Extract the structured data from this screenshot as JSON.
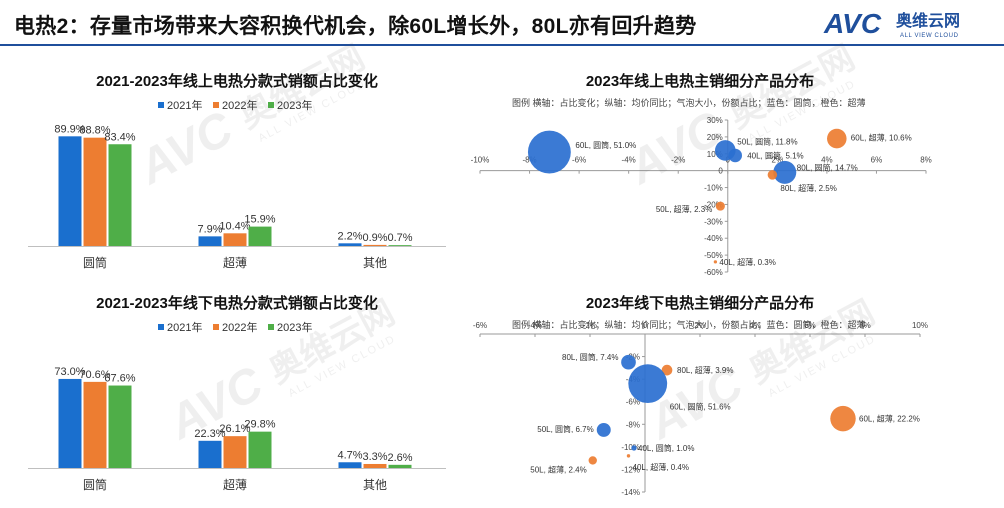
{
  "header": {
    "title": "电热2：存量市场带来大容积换代机会，除60L增长外，80L亦有回升趋势",
    "logo_mark": "AVC",
    "logo_cn": "奥维云网",
    "logo_en": "ALL VIEW CLOUD"
  },
  "watermark": {
    "mark": "AVC",
    "cn": "奥维云网",
    "en": "ALL VIEW CLOUD"
  },
  "colors": {
    "y2021": "#1a6fce",
    "y2022": "#ed7d31",
    "y2023": "#4fae48",
    "blue": "#2a6fd0",
    "orange": "#ed7d31",
    "rule": "#1f4f9c"
  },
  "chart_data": [
    {
      "id": "online_bar",
      "type": "bar",
      "title": "2021-2023年线上电热分款式销额占比变化",
      "categories": [
        "圆筒",
        "超薄",
        "其他"
      ],
      "series": [
        {
          "name": "2021年",
          "values": [
            89.9,
            7.9,
            2.2
          ],
          "labels": [
            "89.9%",
            "7.9%",
            "2.2%"
          ]
        },
        {
          "name": "2022年",
          "values": [
            88.8,
            10.4,
            0.9
          ],
          "labels": [
            "88.8%",
            "10.4%",
            "0.9%"
          ]
        },
        {
          "name": "2023年",
          "values": [
            83.4,
            15.9,
            0.7
          ],
          "labels": [
            "83.4%",
            "15.9%",
            "0.7%"
          ]
        }
      ],
      "ylim": [
        0,
        100
      ]
    },
    {
      "id": "offline_bar",
      "type": "bar",
      "title": "2021-2023年线下电热分款式销额占比变化",
      "categories": [
        "圆筒",
        "超薄",
        "其他"
      ],
      "series": [
        {
          "name": "2021年",
          "values": [
            73.0,
            22.3,
            4.7
          ],
          "labels": [
            "73.0%",
            "22.3%",
            "4.7%"
          ]
        },
        {
          "name": "2022年",
          "values": [
            70.6,
            26.1,
            3.3
          ],
          "labels": [
            "70.6%",
            "26.1%",
            "3.3%"
          ]
        },
        {
          "name": "2023年",
          "values": [
            67.6,
            29.8,
            2.6
          ],
          "labels": [
            "67.6%",
            "29.8%",
            "2.6%"
          ]
        }
      ],
      "ylim": [
        0,
        100
      ]
    },
    {
      "id": "online_bubble",
      "type": "scatter",
      "title": "2023年线上电热主销细分产品分布",
      "legend_note": "图例  横轴：占比变化；纵轴：均价同比；气泡大小，份额占比；蓝色：圆筒，橙色：超薄",
      "xlim": [
        -10,
        8
      ],
      "ylim": [
        -60,
        30
      ],
      "x_ticks": [
        "-10%",
        "-8%",
        "-6%",
        "-4%",
        "-2%",
        "0",
        "2%",
        "4%",
        "6%",
        "8%"
      ],
      "x_tick_values": [
        -10,
        -8,
        -6,
        -4,
        -2,
        0,
        2,
        4,
        6,
        8
      ],
      "y_ticks": [
        "30%",
        "20%",
        "10%",
        "0",
        "-10%",
        "-20%",
        "-30%",
        "-40%",
        "-50%",
        "-60%"
      ],
      "y_tick_values": [
        30,
        20,
        10,
        0,
        -10,
        -20,
        -30,
        -40,
        -50,
        -60
      ],
      "points": [
        {
          "label": "60L, 圆筒, 51.0%",
          "type": "圆筒",
          "share": 51.0,
          "x": -7.2,
          "y": 11.0
        },
        {
          "label": "50L, 圆筒, 11.8%",
          "type": "圆筒",
          "share": 11.8,
          "x": -0.1,
          "y": 12.0
        },
        {
          "label": "60L, 超薄, 10.6%",
          "type": "超薄",
          "share": 10.6,
          "x": 4.4,
          "y": 19.0
        },
        {
          "label": "40L, 圆筒, 5.1%",
          "type": "圆筒",
          "share": 5.1,
          "x": 0.3,
          "y": 9.0
        },
        {
          "label": "80L, 圆筒, 14.7%",
          "type": "圆筒",
          "share": 14.7,
          "x": 2.3,
          "y": -1.0
        },
        {
          "label": "80L, 超薄, 2.5%",
          "type": "超薄",
          "share": 2.5,
          "x": 1.8,
          "y": -2.5
        },
        {
          "label": "50L, 超薄, 2.3%",
          "type": "超薄",
          "share": 2.3,
          "x": -0.3,
          "y": -21.0
        },
        {
          "label": "40L, 超薄, 0.3%",
          "type": "超薄",
          "share": 0.3,
          "x": -0.5,
          "y": -54.0
        }
      ]
    },
    {
      "id": "offline_bubble",
      "type": "scatter",
      "title": "2023年线下电热主销细分产品分布",
      "legend_note": "图例  横轴：占比变化；纵轴：均价同比；气泡大小，份额占比；蓝色：圆筒，橙色：超薄",
      "xlim": [
        -6,
        10
      ],
      "ylim": [
        -14,
        0
      ],
      "x_ticks": [
        "-6%",
        "-4%",
        "-2%",
        "0",
        "2%",
        "4%",
        "6%",
        "8%",
        "10%"
      ],
      "x_tick_values": [
        -6,
        -4,
        -2,
        0,
        2,
        4,
        6,
        8,
        10
      ],
      "y_ticks": [
        "-2%",
        "-4%",
        "-6%",
        "-8%",
        "-10%",
        "-12%",
        "-14%"
      ],
      "y_tick_values": [
        -2,
        -4,
        -6,
        -8,
        -10,
        -12,
        -14
      ],
      "points": [
        {
          "label": "80L, 圆筒, 7.4%",
          "type": "圆筒",
          "share": 7.4,
          "x": -0.6,
          "y": -2.5
        },
        {
          "label": "80L, 超薄, 3.9%",
          "type": "超薄",
          "share": 3.9,
          "x": 0.8,
          "y": -3.2
        },
        {
          "label": "60L, 圆筒, 51.6%",
          "type": "圆筒",
          "share": 51.6,
          "x": 0.1,
          "y": -4.4
        },
        {
          "label": "50L, 圆筒, 6.7%",
          "type": "圆筒",
          "share": 6.7,
          "x": -1.5,
          "y": -8.5
        },
        {
          "label": "60L, 超薄, 22.2%",
          "type": "超薄",
          "share": 22.2,
          "x": 7.2,
          "y": -7.5
        },
        {
          "label": "40L, 圆筒, 1.0%",
          "type": "圆筒",
          "share": 1.0,
          "x": -0.4,
          "y": -10.1
        },
        {
          "label": "50L, 超薄, 2.4%",
          "type": "超薄",
          "share": 2.4,
          "x": -1.9,
          "y": -11.2
        },
        {
          "label": "40L, 超薄, 0.4%",
          "type": "超薄",
          "share": 0.4,
          "x": -0.6,
          "y": -10.8
        }
      ]
    }
  ]
}
